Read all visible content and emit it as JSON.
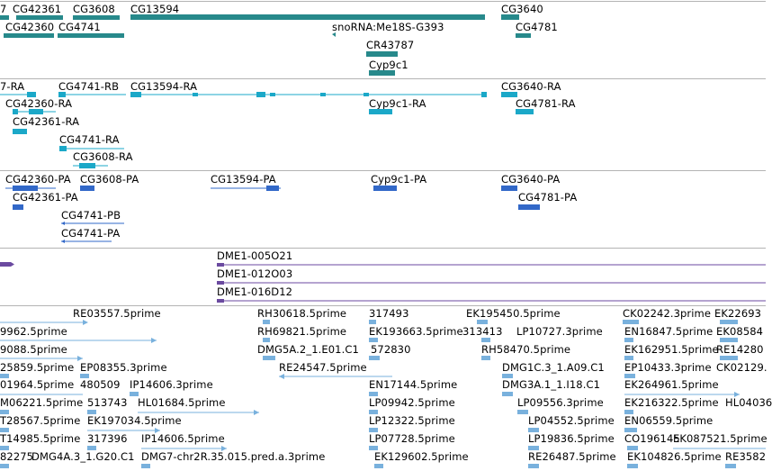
{
  "colors": {
    "gene": "#27898b",
    "transcript": "#1ba8c8",
    "protein": "#3268c8",
    "bac": "#6b4aa0",
    "est": "#79b1dd",
    "separator": "#b4b4b4"
  },
  "icons": {
    "arrow_left": "arrow-left-icon",
    "arrow_right": "arrow-right-icon"
  },
  "tracks": {
    "genes": {
      "labels": [
        "7",
        "CG42361",
        "CG3608",
        "CG13594",
        "CG3640",
        "CG42360",
        "CG4741",
        "snoRNA:Me18S-G393",
        "CG4781",
        "CR43787",
        "Cyp9c1"
      ]
    },
    "transcripts": {
      "labels": [
        "7-RA",
        "CG4741-RB",
        "CG13594-RA",
        "CG3640-RA",
        "CG42360-RA",
        "Cyp9c1-RA",
        "CG4781-RA",
        "CG42361-RA",
        "CG4741-RA",
        "CG3608-RA"
      ]
    },
    "proteins": {
      "labels": [
        "CG42360-PA",
        "CG3608-PA",
        "CG13594-PA",
        "Cyp9c1-PA",
        "CG3640-PA",
        "CG42361-PA",
        "CG4781-PA",
        "CG4741-PB",
        "CG4741-PA"
      ]
    },
    "bac": {
      "labels": [
        "DME1-005O21",
        "DME1-012O03",
        "DME1-016D12"
      ]
    },
    "est": {
      "labels": [
        "RE03557.5prime",
        "RH30618.5prime",
        "317493",
        "EK195450.5prime",
        "CK02242.3prime",
        "EK22693",
        "9962.5prime",
        "RH69821.5prime",
        "EK193663.5prime",
        "313413",
        "LP10727.3prime",
        "EN16847.5prime",
        "EK08584",
        "9088.5prime",
        "DMG5A.2_1.E01.C1",
        "572830",
        "RH58470.5prime",
        "EK162951.5prime",
        "RE14280",
        "25859.5prime",
        "EP08355.3prime",
        "RE24547.5prime",
        "DMG1C.3_1.A09.C1",
        "EP10433.3prime",
        "CK02129.",
        "01964.5prime",
        "480509",
        "IP14606.3prime",
        "EN17144.5prime",
        "DMG3A.1_1.I18.C1",
        "EK264961.5prime",
        "M06221.5prime",
        "513743",
        "HL01684.5prime",
        "LP09942.5prime",
        "LP09556.3prime",
        "EK216322.5prime",
        "HL04036",
        "T28567.5prime",
        "EK197034.5prime",
        "LP12322.5prime",
        "LP04552.5prime",
        "EN06559.5prime",
        "T14985.5prime",
        "317396",
        "IP14606.5prime",
        "LP07728.5prime",
        "LP19836.5prime",
        "CO196145",
        "EK087521.5prime",
        "82275",
        "DMG4A.3_1.G20.C1",
        "DMG7-chr2R.35.015.pred.a.3prime",
        "EK129602.5prime",
        "RE26487.5prime",
        "EK104826.5prime",
        "RE3582"
      ]
    }
  }
}
